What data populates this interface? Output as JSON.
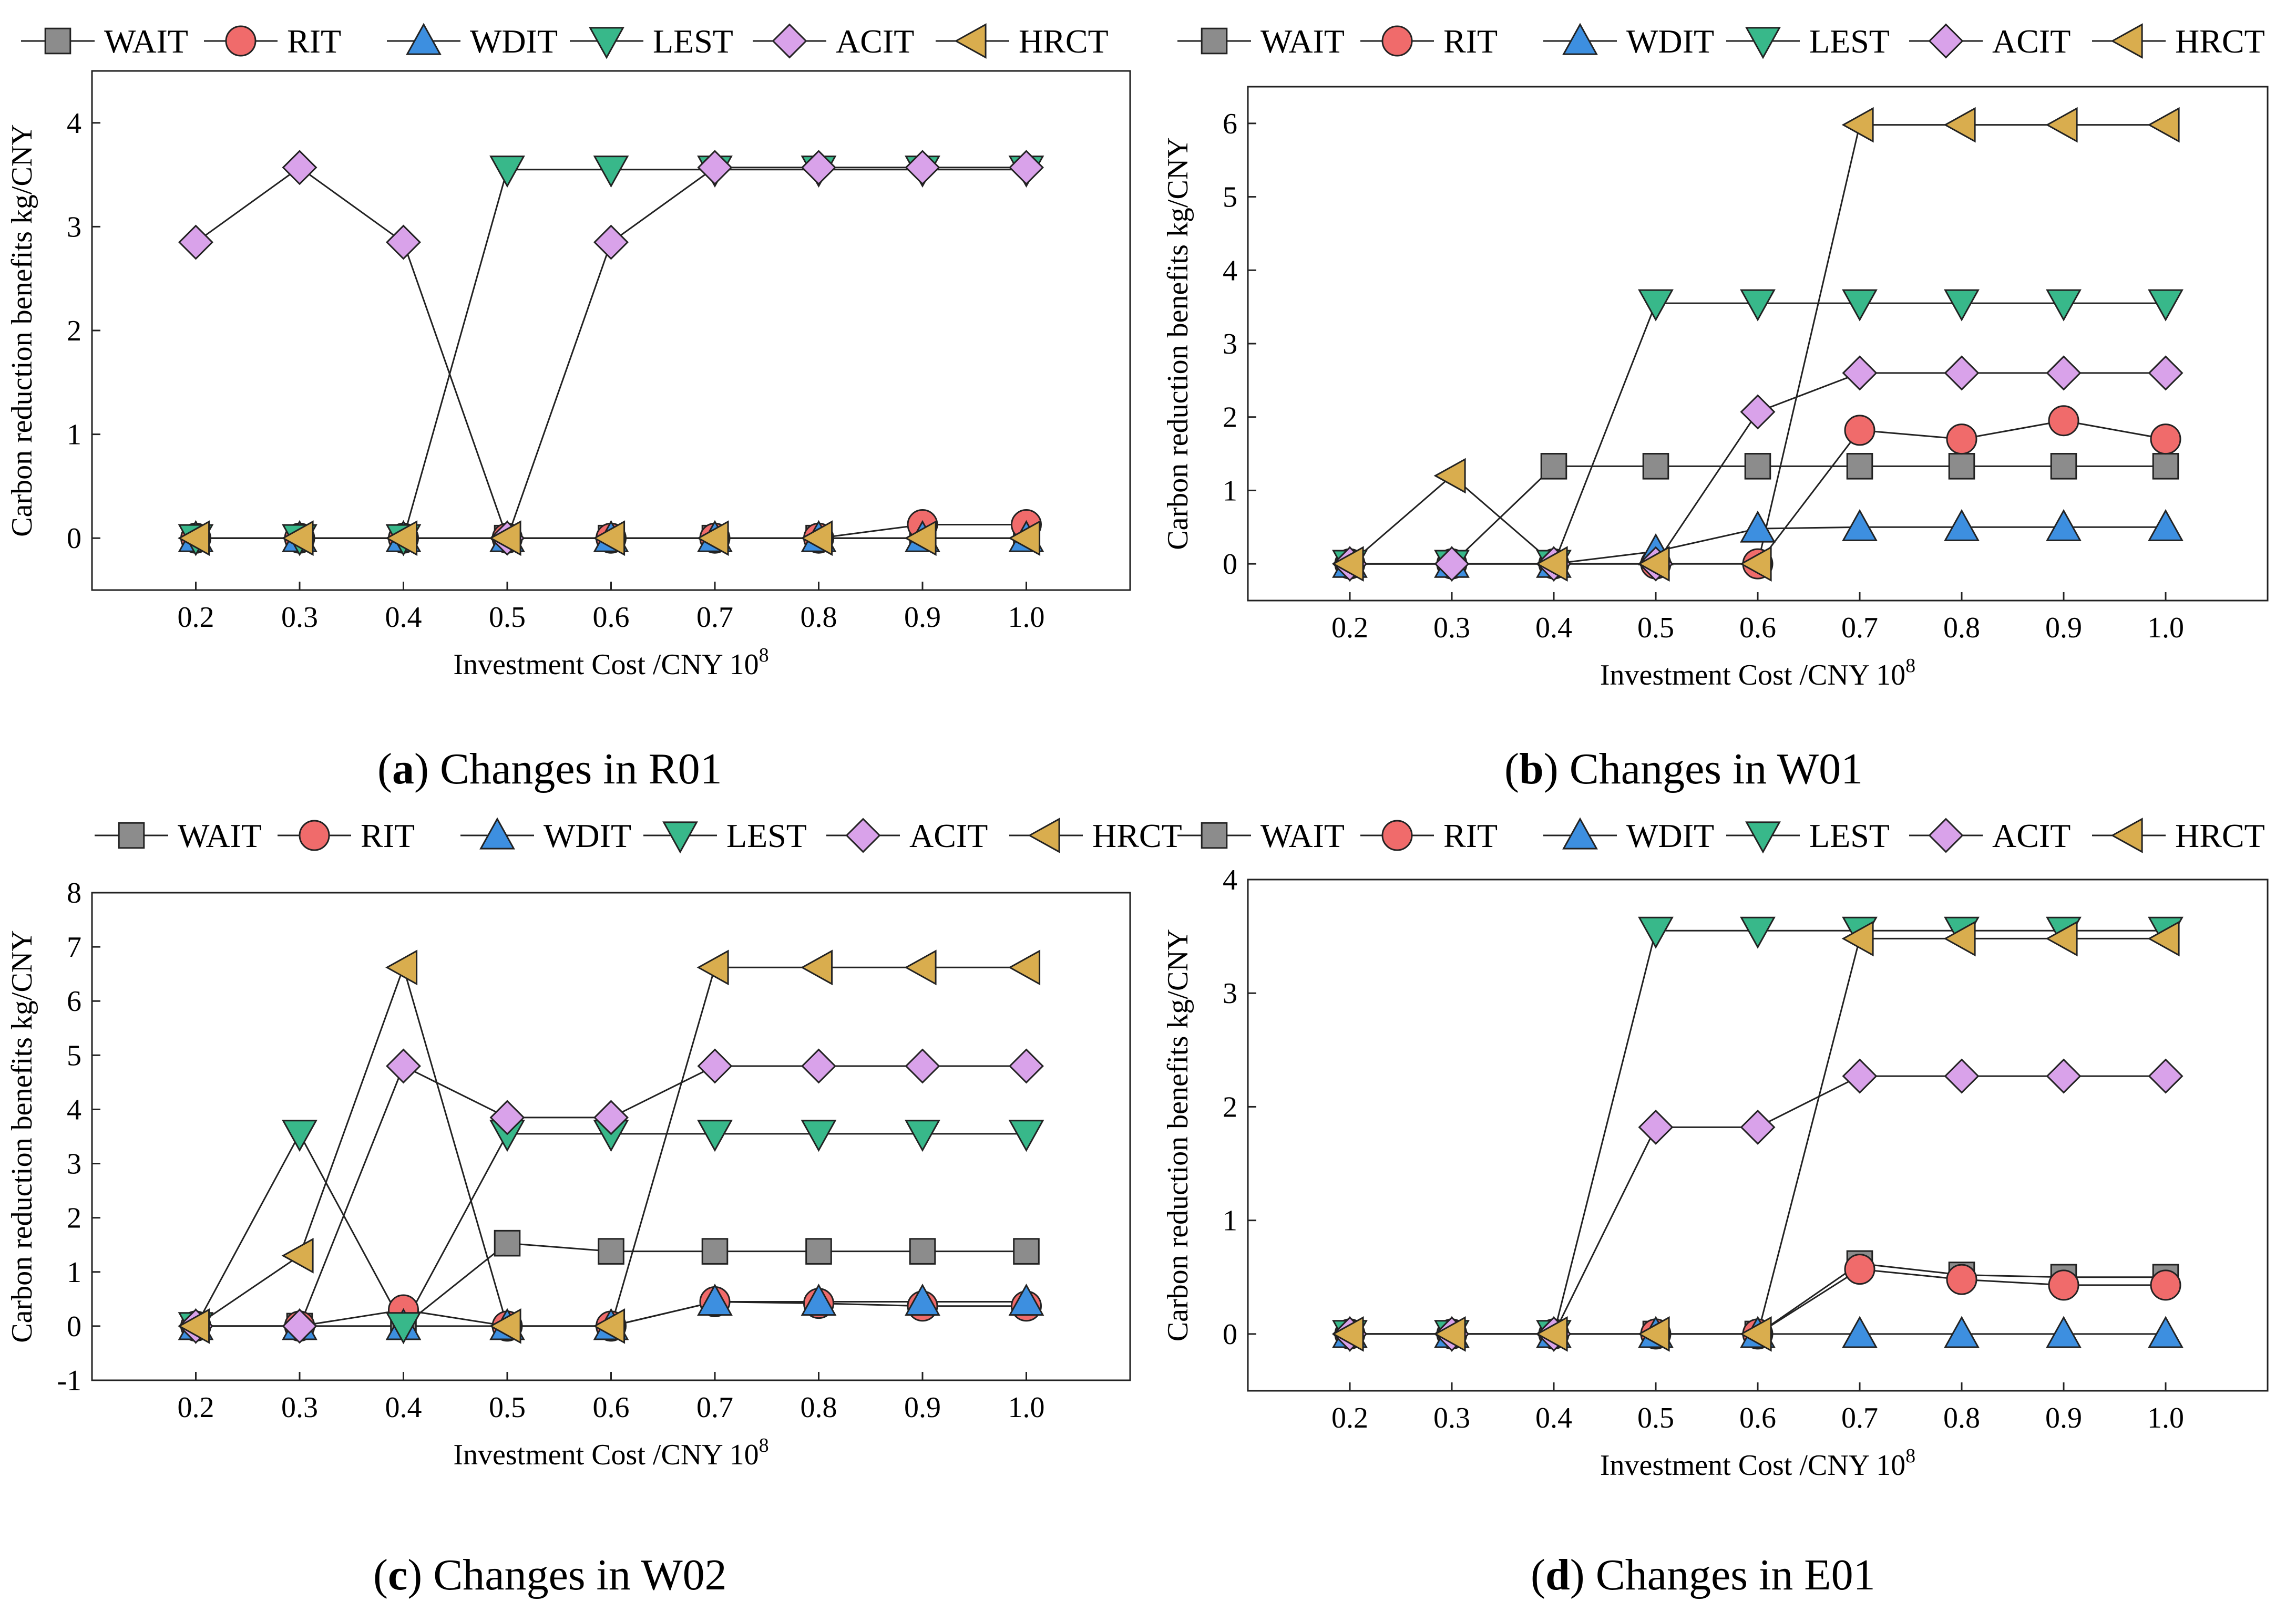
{
  "legend_series": [
    "WAIT",
    "RIT",
    "WDIT",
    "LEST",
    "ACIT",
    "HRCT"
  ],
  "series_style": {
    "WAIT": {
      "marker": "square",
      "fill": "#8c8c8c"
    },
    "RIT": {
      "marker": "circle",
      "fill": "#f06b6b"
    },
    "WDIT": {
      "marker": "triangle-up",
      "fill": "#3d8fe0"
    },
    "LEST": {
      "marker": "triangle-down",
      "fill": "#38b88a"
    },
    "ACIT": {
      "marker": "diamond",
      "fill": "#d9a2ea"
    },
    "HRCT": {
      "marker": "triangle-left",
      "fill": "#d9ad4e"
    }
  },
  "chart_data": [
    {
      "type": "line",
      "panel_letter": "a",
      "title": "Changes in R01",
      "xlabel": "Investment Cost /CNY 10",
      "xlabel_sup": "8",
      "ylabel": "Carbon reduction benefits kg/CNY",
      "x": [
        "0.2",
        "0.3",
        "0.4",
        "0.5",
        "0.6",
        "0.7",
        "0.8",
        "0.9",
        "1.0"
      ],
      "xlim": [
        0.1,
        1.1
      ],
      "ylim": [
        -0.5,
        4.5
      ],
      "yticks": [
        0,
        1,
        2,
        3,
        4
      ],
      "series": [
        {
          "name": "WAIT",
          "values": [
            0,
            0,
            0,
            0,
            0,
            0,
            0,
            0,
            0
          ]
        },
        {
          "name": "RIT",
          "values": [
            0,
            0,
            0,
            0,
            0,
            0,
            0,
            0.13,
            0.13
          ]
        },
        {
          "name": "WDIT",
          "values": [
            0,
            0,
            0,
            0,
            0,
            0,
            0,
            0,
            0
          ]
        },
        {
          "name": "LEST",
          "values": [
            0,
            0,
            0,
            3.55,
            3.55,
            3.55,
            3.55,
            3.55,
            3.55
          ]
        },
        {
          "name": "ACIT",
          "values": [
            2.85,
            3.57,
            2.85,
            0,
            2.85,
            3.57,
            3.57,
            3.57,
            3.57
          ]
        },
        {
          "name": "HRCT",
          "values": [
            0,
            0,
            0,
            0,
            0,
            0,
            0,
            0,
            0
          ]
        }
      ]
    },
    {
      "type": "line",
      "panel_letter": "b",
      "title": "Changes in W01",
      "xlabel": "Investment Cost /CNY 10",
      "xlabel_sup": "8",
      "ylabel": "Carbon reduction benefits kg/CNY",
      "x": [
        "0.2",
        "0.3",
        "0.4",
        "0.5",
        "0.6",
        "0.7",
        "0.8",
        "0.9",
        "1.0"
      ],
      "xlim": [
        0.1,
        1.1
      ],
      "ylim": [
        -0.5,
        6.5
      ],
      "yticks": [
        0,
        1,
        2,
        3,
        4,
        5,
        6
      ],
      "series": [
        {
          "name": "WAIT",
          "values": [
            0,
            0,
            1.33,
            1.33,
            1.33,
            1.33,
            1.33,
            1.33,
            1.33
          ]
        },
        {
          "name": "RIT",
          "values": [
            0,
            0,
            0,
            0,
            0,
            1.82,
            1.7,
            1.95,
            1.7
          ]
        },
        {
          "name": "WDIT",
          "values": [
            0,
            0,
            0,
            0.17,
            0.48,
            0.5,
            0.5,
            0.5,
            0.5
          ]
        },
        {
          "name": "LEST",
          "values": [
            0,
            0,
            0,
            3.55,
            3.55,
            3.55,
            3.55,
            3.55,
            3.55
          ]
        },
        {
          "name": "ACIT",
          "values": [
            0,
            0,
            0,
            0,
            2.07,
            2.6,
            2.6,
            2.6,
            2.6
          ]
        },
        {
          "name": "HRCT",
          "values": [
            0,
            1.2,
            0,
            0,
            0,
            5.98,
            5.98,
            5.98,
            5.98
          ]
        }
      ]
    },
    {
      "type": "line",
      "panel_letter": "c",
      "title": "Changes in W02",
      "xlabel": "Investment Cost /CNY 10",
      "xlabel_sup": "8",
      "ylabel": "Carbon reduction benefits kg/CNY",
      "x": [
        "0.2",
        "0.3",
        "0.4",
        "0.5",
        "0.6",
        "0.7",
        "0.8",
        "0.9",
        "1.0"
      ],
      "xlim": [
        0.1,
        1.1
      ],
      "ylim": [
        -1,
        8
      ],
      "yticks": [
        -1,
        0,
        1,
        2,
        3,
        4,
        5,
        6,
        7,
        8
      ],
      "series": [
        {
          "name": "WAIT",
          "values": [
            0,
            0,
            0,
            1.53,
            1.38,
            1.38,
            1.38,
            1.38,
            1.38
          ]
        },
        {
          "name": "RIT",
          "values": [
            0,
            0,
            0.3,
            0,
            0,
            0.45,
            0.42,
            0.37,
            0.37
          ]
        },
        {
          "name": "WDIT",
          "values": [
            0,
            0,
            0,
            0,
            0,
            0.45,
            0.45,
            0.45,
            0.45
          ]
        },
        {
          "name": "LEST",
          "values": [
            0,
            3.55,
            0,
            3.55,
            3.55,
            3.55,
            3.55,
            3.55,
            3.55
          ]
        },
        {
          "name": "ACIT",
          "values": [
            0,
            0,
            4.8,
            3.85,
            3.85,
            4.8,
            4.8,
            4.8,
            4.8
          ]
        },
        {
          "name": "HRCT",
          "values": [
            0,
            1.3,
            6.62,
            0,
            0,
            6.62,
            6.62,
            6.62,
            6.62
          ]
        }
      ]
    },
    {
      "type": "line",
      "panel_letter": "d",
      "title": "Changes in E01",
      "xlabel": "Investment Cost /CNY 10",
      "xlabel_sup": "8",
      "ylabel": "Carbon reduction benefits kg/CNY",
      "x": [
        "0.2",
        "0.3",
        "0.4",
        "0.5",
        "0.6",
        "0.7",
        "0.8",
        "0.9",
        "1.0"
      ],
      "xlim": [
        0.1,
        1.1
      ],
      "ylim": [
        -0.5,
        4
      ],
      "yticks": [
        0,
        1,
        2,
        3,
        4
      ],
      "series": [
        {
          "name": "WAIT",
          "values": [
            0,
            0,
            0,
            0,
            0,
            0.62,
            0.52,
            0.5,
            0.5
          ]
        },
        {
          "name": "RIT",
          "values": [
            0,
            0,
            0,
            0,
            0,
            0.57,
            0.48,
            0.43,
            0.43
          ]
        },
        {
          "name": "WDIT",
          "values": [
            0,
            0,
            0,
            0,
            0,
            0,
            0,
            0,
            0
          ]
        },
        {
          "name": "LEST",
          "values": [
            0,
            0,
            0,
            3.55,
            3.55,
            3.55,
            3.55,
            3.55,
            3.55
          ]
        },
        {
          "name": "ACIT",
          "values": [
            0,
            0,
            0,
            1.82,
            1.82,
            2.27,
            2.27,
            2.27,
            2.27
          ]
        },
        {
          "name": "HRCT",
          "values": [
            0,
            0,
            0,
            0,
            0,
            3.48,
            3.48,
            3.48,
            3.48
          ]
        }
      ]
    }
  ]
}
